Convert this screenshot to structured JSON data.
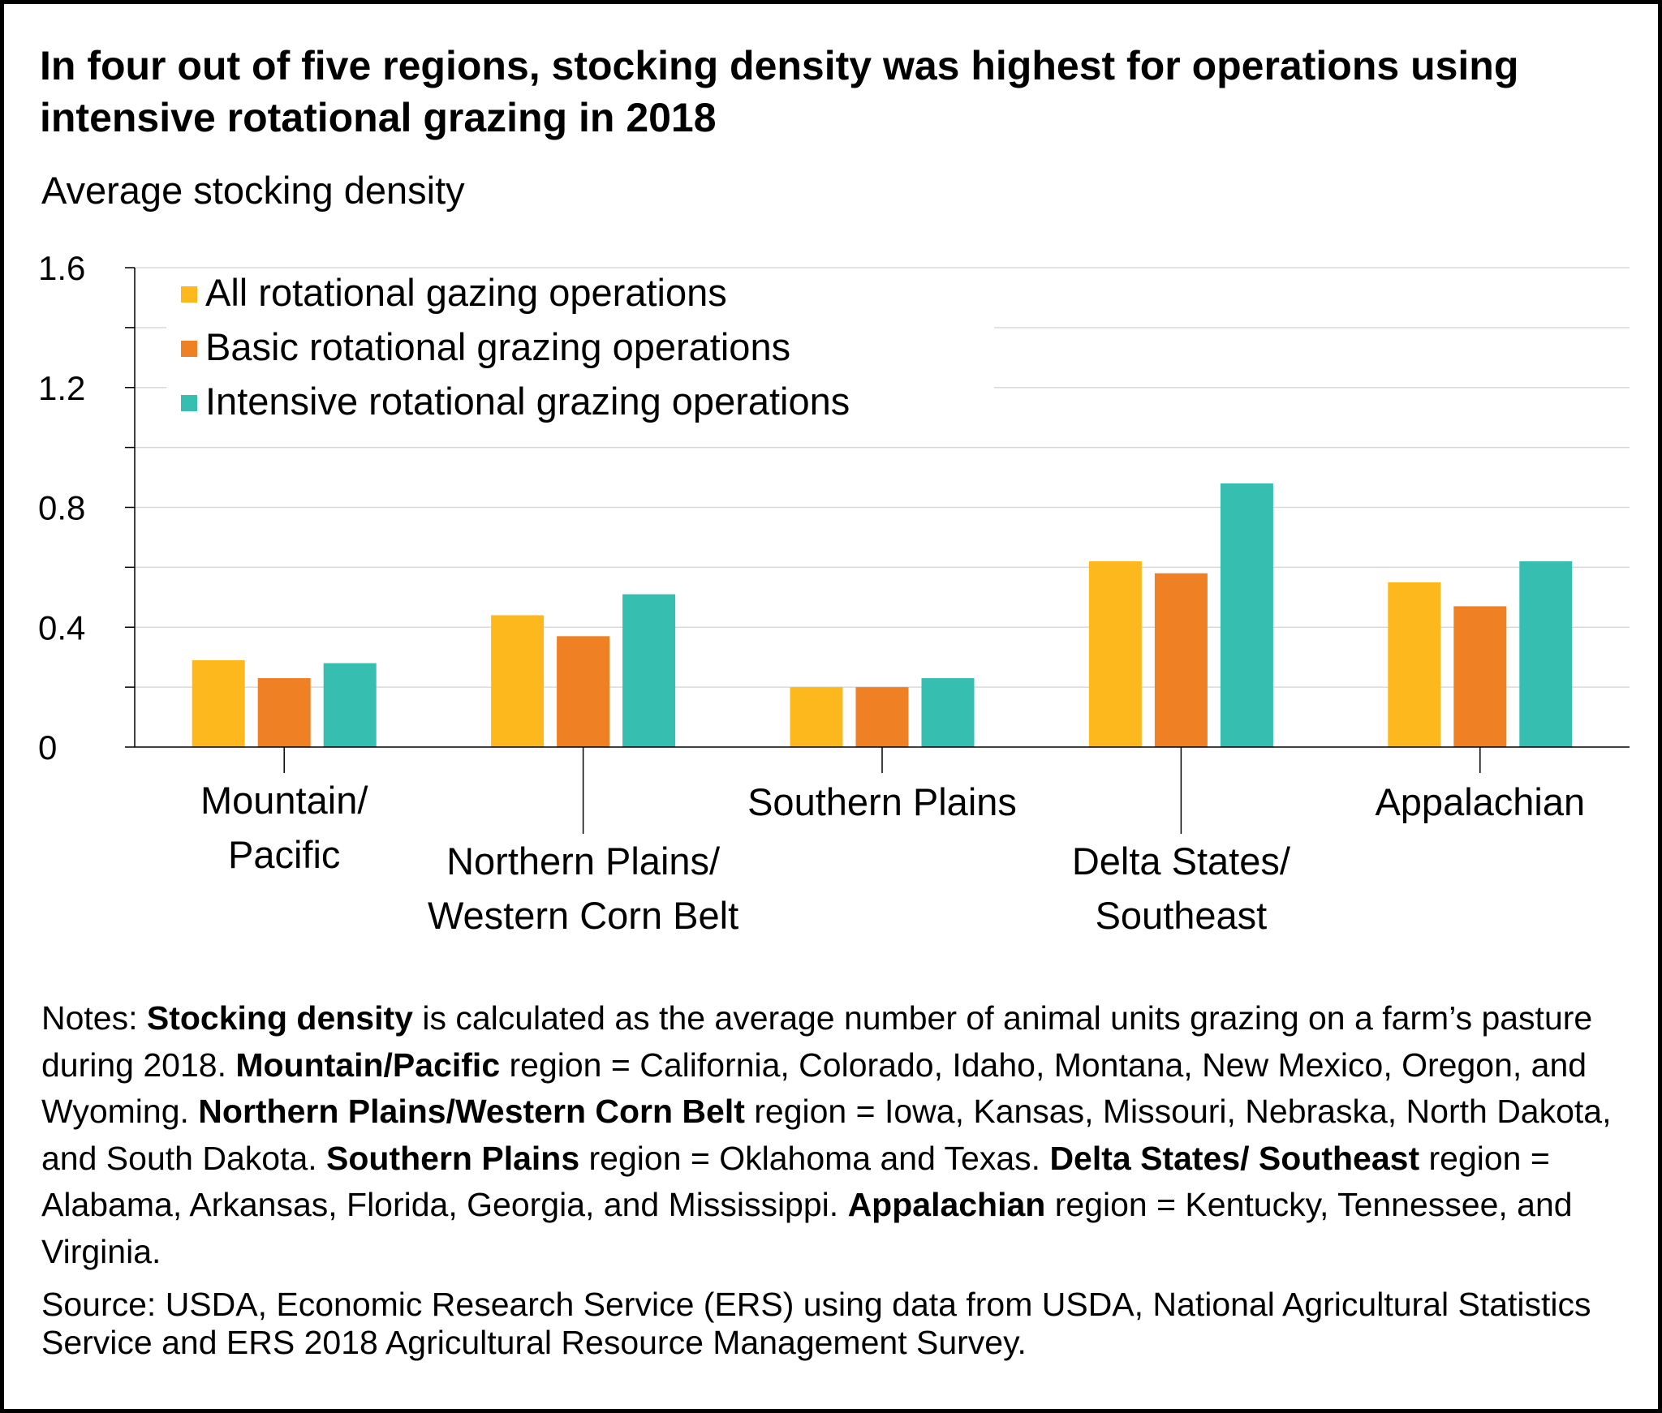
{
  "chart_data": {
    "type": "bar",
    "title": "In four out of five regions, stocking density was highest for operations using intensive rotational grazing in 2018",
    "ylabel": "Average stocking density",
    "xlabel": "",
    "ylim": [
      0,
      1.6
    ],
    "yticks": [
      0,
      0.4,
      0.8,
      1.2,
      1.6
    ],
    "ytick_labels": [
      "0",
      "0.4",
      "0.8",
      "1.2",
      "1.6"
    ],
    "grid": true,
    "legend_position": "top-left",
    "categories": [
      [
        "Mountain/",
        "Pacific"
      ],
      [
        "Northern Plains/",
        "Western Corn Belt"
      ],
      [
        "Southern Plains"
      ],
      [
        "Delta States/",
        "Southeast"
      ],
      [
        "Appalachian"
      ]
    ],
    "series": [
      {
        "name": "All rotational gazing operations",
        "color": "#FDB81E",
        "values": [
          0.29,
          0.44,
          0.2,
          0.62,
          0.55
        ]
      },
      {
        "name": "Basic rotational grazing operations",
        "color": "#F08024",
        "values": [
          0.23,
          0.37,
          0.2,
          0.58,
          0.47
        ]
      },
      {
        "name": "Intensive rotational grazing operations",
        "color": "#36BEB0",
        "values": [
          0.28,
          0.51,
          0.23,
          0.88,
          0.62
        ]
      }
    ]
  },
  "notes": [
    {
      "t": "Notes: ",
      "b": false
    },
    {
      "t": "Stocking density",
      "b": true
    },
    {
      "t": " is calculated as the average number of animal units grazing on a farm’s pasture during 2018. ",
      "b": false
    },
    {
      "t": "Mountain/Pacific",
      "b": true
    },
    {
      "t": " region = California, Colorado, Idaho, Montana, New Mexico, Oregon, and Wyoming. ",
      "b": false
    },
    {
      "t": "Northern Plains/Western Corn Belt",
      "b": true
    },
    {
      "t": " region = Iowa, Kansas, Missouri, Nebraska, North Dakota, and South Dakota. ",
      "b": false
    },
    {
      "t": "Southern Plains",
      "b": true
    },
    {
      "t": " region = Oklahoma and Texas. ",
      "b": false
    },
    {
      "t": "Delta States/ Southeast",
      "b": true
    },
    {
      "t": " region = Alabama, Arkansas, Florida, Georgia, and Mississippi. ",
      "b": false
    },
    {
      "t": "Appalachian",
      "b": true
    },
    {
      "t": " region = Kentucky, Tennessee, and Virginia.",
      "b": false
    }
  ],
  "source": "Source: USDA, Economic Research Service (ERS) using data from USDA, National Agricultural Statistics Service and ERS 2018 Agricultural Resource Management Survey."
}
